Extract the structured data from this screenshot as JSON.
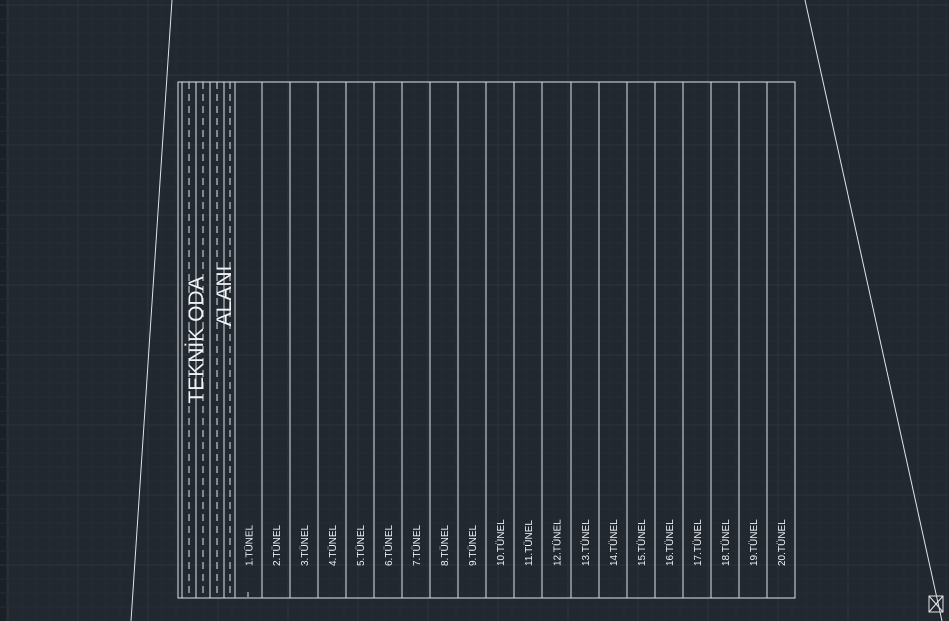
{
  "drawing": {
    "room_label_line1": "TEKNİK ODA",
    "room_label_line2": "ALANI",
    "tunnels": [
      "1.TÜNEL",
      "2.TÜNEL",
      "3.TÜNEL",
      "4.TÜNEL",
      "5.TÜNEL",
      "6.TÜNEL",
      "7.TÜNEL",
      "8.TÜNEL",
      "9.TÜNEL",
      "10.TÜNEL",
      "11.TÜNEL",
      "12.TÜNEL",
      "13.TÜNEL",
      "14.TÜNEL",
      "15.TÜNEL",
      "16.TÜNEL",
      "17.TÜNEL",
      "18.TÜNEL",
      "19.TÜNEL",
      "20.TÜNEL"
    ]
  },
  "colors": {
    "background": "#212830",
    "grid_major": "#2b333d",
    "grid_minor": "#252c35",
    "line": "#dfe3e8",
    "text": "#f0f2f4"
  },
  "icons": {
    "ucs_marker": "ucs-box-icon"
  }
}
